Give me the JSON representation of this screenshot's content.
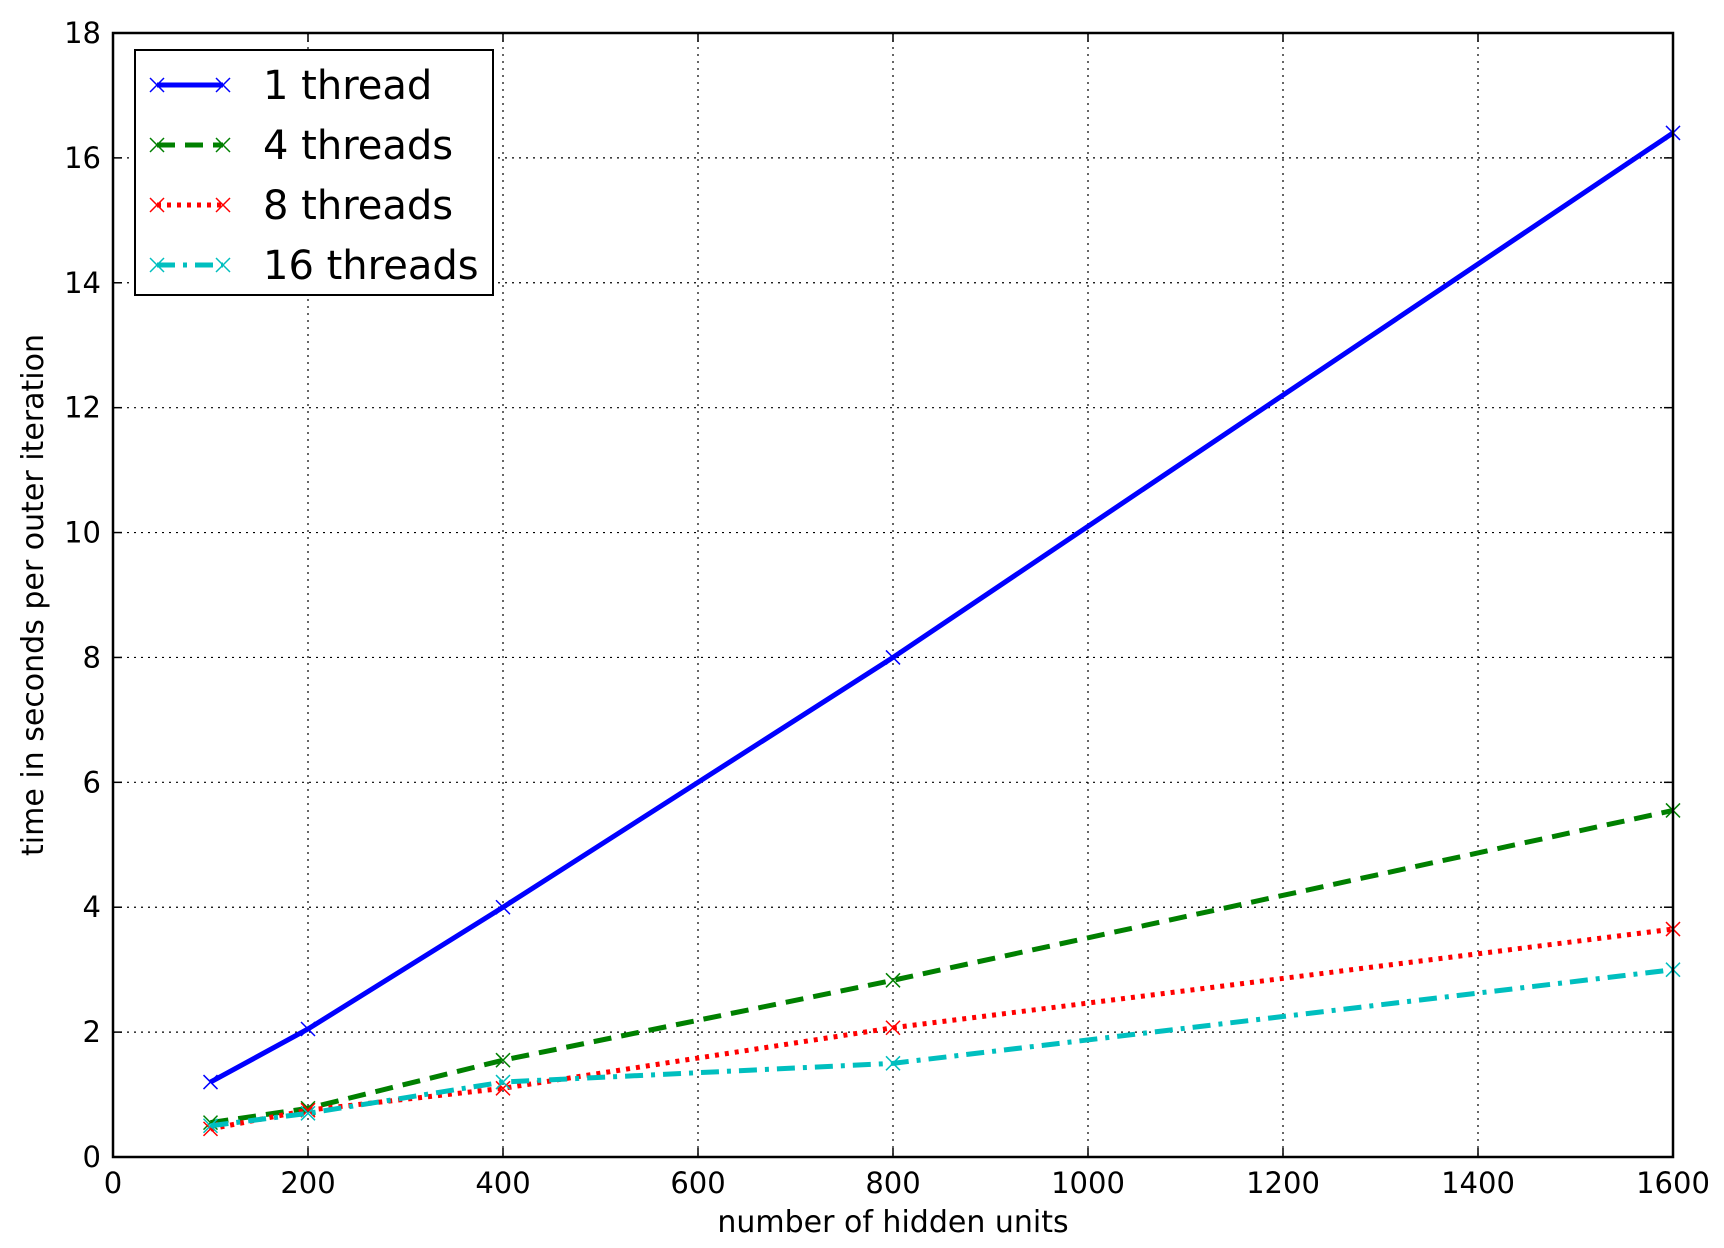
{
  "chart_data": {
    "type": "line",
    "title": "",
    "xlabel": "number of hidden units",
    "ylabel": "time in seconds per outer iteration",
    "xlim": [
      0,
      1600
    ],
    "ylim": [
      0,
      18
    ],
    "xticks": [
      0,
      200,
      400,
      600,
      800,
      1000,
      1200,
      1400,
      1600
    ],
    "yticks": [
      0,
      2,
      4,
      6,
      8,
      10,
      12,
      14,
      16,
      18
    ],
    "grid": true,
    "legend_position": "top-left",
    "series": [
      {
        "name": "1 thread",
        "color": "#0000ff",
        "style": "solid",
        "marker": "x",
        "x": [
          100,
          200,
          400,
          800,
          1600
        ],
        "y": [
          1.2,
          2.05,
          4.0,
          8.0,
          16.4
        ]
      },
      {
        "name": "4 threads",
        "color": "#008000",
        "style": "dashed",
        "marker": "x",
        "x": [
          100,
          200,
          400,
          800,
          1600
        ],
        "y": [
          0.55,
          0.78,
          1.55,
          2.83,
          5.55
        ]
      },
      {
        "name": "8 threads",
        "color": "#ff0000",
        "style": "dotted",
        "marker": "x",
        "x": [
          100,
          200,
          400,
          800,
          1600
        ],
        "y": [
          0.45,
          0.75,
          1.1,
          2.07,
          3.65
        ]
      },
      {
        "name": "16 threads",
        "color": "#00bfbf",
        "style": "dashdot",
        "marker": "x",
        "x": [
          100,
          200,
          400,
          800,
          1600
        ],
        "y": [
          0.5,
          0.7,
          1.2,
          1.5,
          3.0
        ]
      }
    ]
  }
}
